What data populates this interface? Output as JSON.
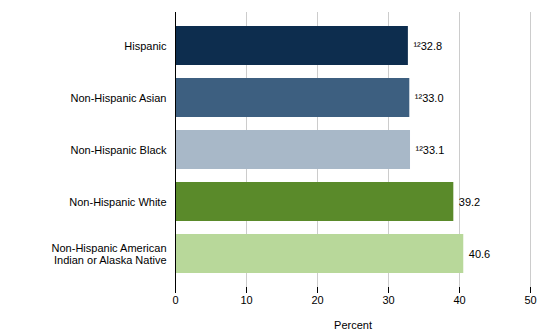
{
  "chart_data": {
    "type": "bar",
    "orientation": "horizontal",
    "categories": [
      "Hispanic",
      "Non-Hispanic Asian",
      "Non-Hispanic Black",
      "Non-Hispanic White",
      "Non-Hispanic American\nIndian or Alaska Native"
    ],
    "values": [
      32.8,
      33.0,
      33.1,
      39.2,
      40.6
    ],
    "value_labels": [
      "¹²32.8",
      "¹²33.0",
      "¹²33.1",
      "39.2",
      "40.6"
    ],
    "colors": [
      "#0d2d4e",
      "#3d5f80",
      "#a8b8c8",
      "#5a8a2a",
      "#b8d89a"
    ],
    "xlabel": "Percent",
    "xlim": [
      0,
      50
    ],
    "xticks": [
      0,
      10,
      20,
      30,
      40,
      50
    ],
    "grid": true,
    "data_labels": true
  }
}
